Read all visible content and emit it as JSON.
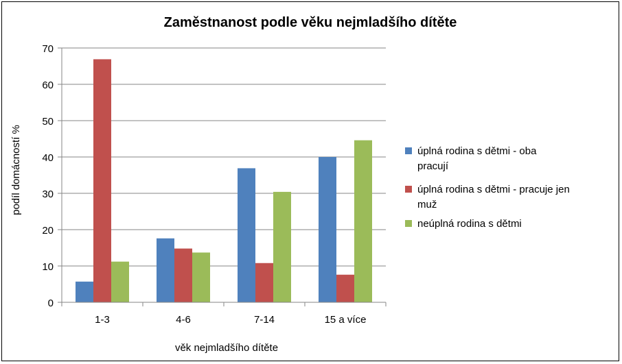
{
  "chart_data": {
    "type": "bar",
    "title": "Zaměstnanost podle věku nejmladšího dítěte",
    "xlabel": "věk nejmladšího dítěte",
    "ylabel": "podíl domácností %",
    "categories": [
      "1-3",
      "4-6",
      "7-14",
      "15 a více"
    ],
    "ylim": [
      0,
      70
    ],
    "yticks": [
      "0",
      "10",
      "20",
      "30",
      "40",
      "50",
      "60",
      "70"
    ],
    "grid": true,
    "legend_position": "right",
    "series": [
      {
        "name": "úplná rodina s dětmi - oba pracují",
        "legend_lines": [
          "úplná rodina s dětmi - oba",
          "pracují"
        ],
        "color": "#4F81BD",
        "values": [
          5.7,
          17.6,
          36.9,
          40.0
        ]
      },
      {
        "name": "úplná rodina s dětmi - pracuje jen muž",
        "legend_lines": [
          "úplná rodina s dětmi - pracuje jen",
          "muž"
        ],
        "color": "#C0504D",
        "values": [
          66.9,
          14.8,
          10.8,
          7.6
        ]
      },
      {
        "name": "neúplná rodina s dětmi",
        "legend_lines": [
          "neúplná rodina s dětmi"
        ],
        "color": "#9BBB59",
        "values": [
          11.2,
          13.7,
          30.4,
          44.6
        ]
      }
    ]
  }
}
